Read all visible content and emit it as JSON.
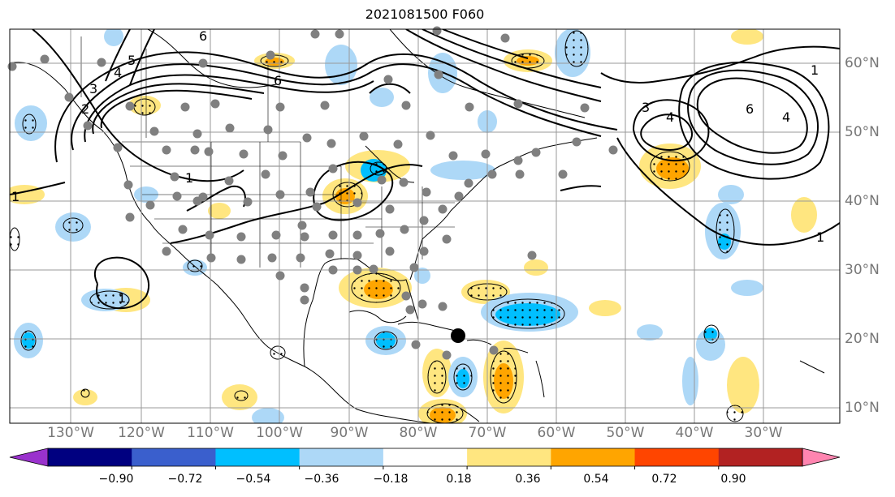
{
  "title": "2021081500 F060",
  "longitude_labels": [
    "130°W",
    "120°W",
    "110°W",
    "100°W",
    "90°W",
    "80°W",
    "70°W",
    "60°W",
    "50°W",
    "40°W",
    "30°W"
  ],
  "latitude_labels": [
    "60°N",
    "50°N",
    "40°N",
    "30°N",
    "20°N",
    "10°N"
  ],
  "contour_labels": [
    "6",
    "6",
    "5",
    "4",
    "3",
    "2",
    "1",
    "1",
    "3",
    "4",
    "6",
    "4",
    "1",
    "1",
    "1"
  ],
  "colorbar": {
    "tick_labels": [
      "−0.90",
      "−0.72",
      "−0.54",
      "−0.36",
      "−0.18",
      "0.18",
      "0.36",
      "0.54",
      "0.72",
      "0.90"
    ],
    "colors": [
      "#9a32cd",
      "#000080",
      "#3a5fcd",
      "#00bfff",
      "#add8f7",
      "#ffffff",
      "#ffe680",
      "#ffa500",
      "#ff4500",
      "#b22222",
      "#ff85b0"
    ]
  },
  "colors": {
    "gridline": "#999999",
    "coastline": "#000000",
    "station_marker": "#808080",
    "storm_marker": "#000000",
    "contour": "#000000"
  }
}
